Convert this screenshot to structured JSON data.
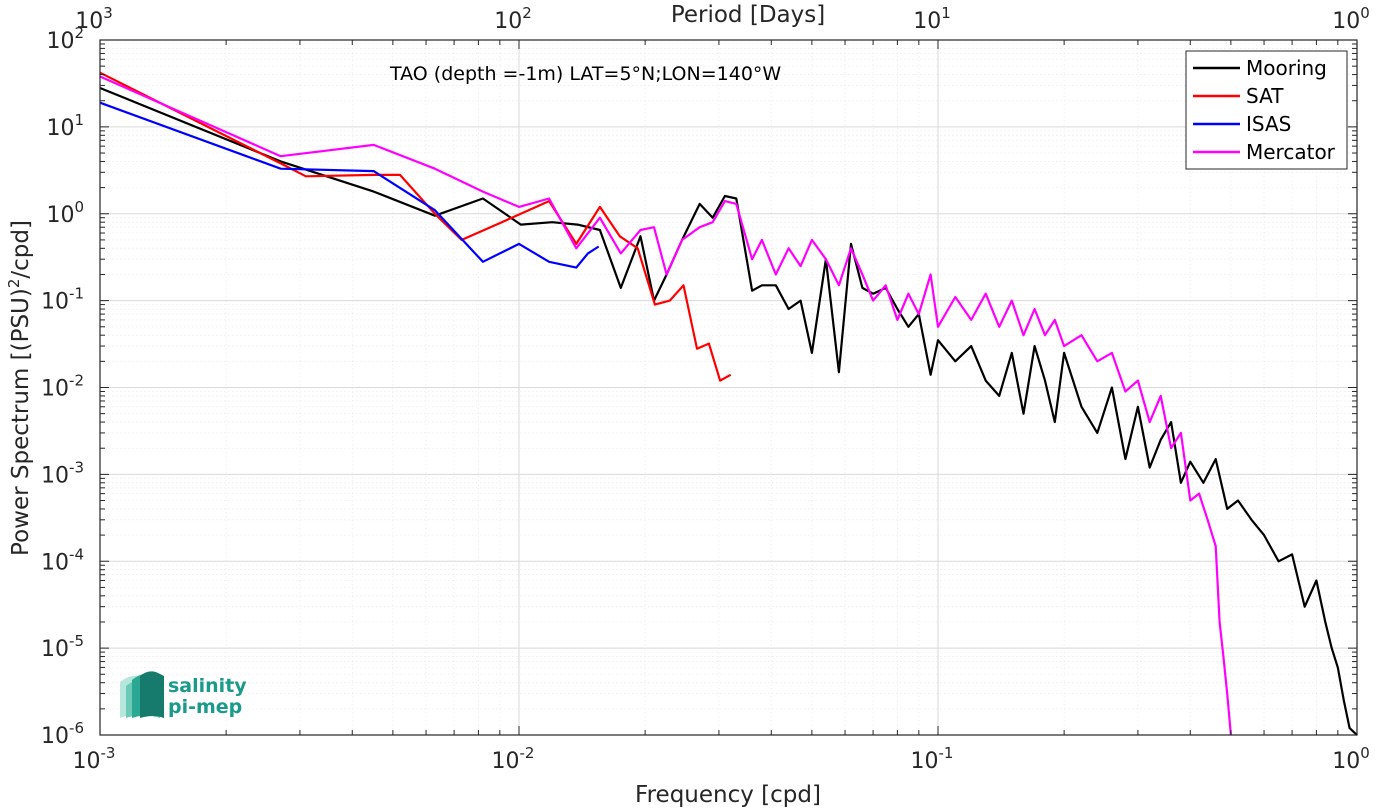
{
  "chart_data": {
    "type": "line",
    "title": "TAO (depth =-1m) LAT=5°N;LON=140°W",
    "xlabel": "Frequency [cpd]",
    "ylabel_main": "Power Spectrum [(PSU)",
    "ylabel_sup": "2",
    "ylabel_tail": "/cpd]",
    "top_xlabel": "Period [Days]",
    "x_scale": "log",
    "y_scale": "log",
    "xlim": [
      0.001,
      1
    ],
    "ylim": [
      1e-06,
      100
    ],
    "grid": true,
    "legend_position": "top-right",
    "x_ticks": [
      {
        "base": "10",
        "exp": "-3",
        "value": 0.001
      },
      {
        "base": "10",
        "exp": "-2",
        "value": 0.01
      },
      {
        "base": "10",
        "exp": "-1",
        "value": 0.1
      },
      {
        "base": "10",
        "exp": "0",
        "value": 1
      }
    ],
    "top_x_ticks": [
      {
        "base": "10",
        "exp": "3",
        "value": 0.001
      },
      {
        "base": "10",
        "exp": "2",
        "value": 0.01
      },
      {
        "base": "10",
        "exp": "1",
        "value": 0.1
      },
      {
        "base": "10",
        "exp": "0",
        "value": 1
      }
    ],
    "y_ticks": [
      {
        "base": "10",
        "exp": "2",
        "value": 100
      },
      {
        "base": "10",
        "exp": "1",
        "value": 10
      },
      {
        "base": "10",
        "exp": "0",
        "value": 1
      },
      {
        "base": "10",
        "exp": "-1",
        "value": 0.1
      },
      {
        "base": "10",
        "exp": "-2",
        "value": 0.01
      },
      {
        "base": "10",
        "exp": "-3",
        "value": 0.001
      },
      {
        "base": "10",
        "exp": "-4",
        "value": 0.0001
      },
      {
        "base": "10",
        "exp": "-5",
        "value": 1e-05
      },
      {
        "base": "10",
        "exp": "-6",
        "value": 1e-06
      }
    ],
    "series": [
      {
        "name": "Mooring",
        "color": "#000000",
        "x": [
          0.001,
          0.0027,
          0.0045,
          0.0063,
          0.0082,
          0.0101,
          0.012,
          0.0138,
          0.0156,
          0.0175,
          0.0195,
          0.021,
          0.0225,
          0.0245,
          0.027,
          0.029,
          0.031,
          0.033,
          0.036,
          0.038,
          0.041,
          0.044,
          0.047,
          0.05,
          0.054,
          0.058,
          0.062,
          0.066,
          0.07,
          0.075,
          0.08,
          0.085,
          0.09,
          0.096,
          0.1,
          0.11,
          0.12,
          0.13,
          0.14,
          0.15,
          0.16,
          0.17,
          0.18,
          0.19,
          0.2,
          0.22,
          0.24,
          0.26,
          0.28,
          0.3,
          0.32,
          0.34,
          0.36,
          0.38,
          0.4,
          0.43,
          0.46,
          0.49,
          0.52,
          0.56,
          0.6,
          0.65,
          0.7,
          0.75,
          0.8,
          0.84,
          0.87,
          0.9,
          0.93,
          0.96,
          1.0
        ],
        "y": [
          28,
          4,
          1.8,
          0.95,
          1.5,
          0.75,
          0.8,
          0.75,
          0.65,
          0.14,
          0.55,
          0.1,
          0.2,
          0.5,
          1.3,
          0.9,
          1.6,
          1.5,
          0.13,
          0.15,
          0.15,
          0.08,
          0.1,
          0.025,
          0.3,
          0.015,
          0.45,
          0.14,
          0.12,
          0.14,
          0.08,
          0.05,
          0.07,
          0.014,
          0.035,
          0.02,
          0.03,
          0.012,
          0.008,
          0.025,
          0.005,
          0.03,
          0.012,
          0.004,
          0.025,
          0.006,
          0.003,
          0.01,
          0.0015,
          0.006,
          0.0012,
          0.0025,
          0.004,
          0.0008,
          0.0014,
          0.0008,
          0.0015,
          0.0004,
          0.0005,
          0.0003,
          0.0002,
          0.0001,
          0.00012,
          3e-05,
          6e-05,
          2e-05,
          1e-05,
          6e-06,
          2.5e-06,
          1.2e-06,
          1e-06
        ]
      },
      {
        "name": "SAT",
        "color": "#ff0000",
        "x": [
          0.001,
          0.0027,
          0.0031,
          0.0045,
          0.0052,
          0.0063,
          0.0073,
          0.0091,
          0.0118,
          0.0137,
          0.0156,
          0.0174,
          0.0192,
          0.0211,
          0.0229,
          0.0247,
          0.0266,
          0.0284,
          0.0302,
          0.032
        ],
        "y": [
          42,
          3.8,
          2.7,
          2.8,
          2.8,
          1.0,
          0.5,
          0.8,
          1.4,
          0.45,
          1.2,
          0.55,
          0.4,
          0.09,
          0.1,
          0.15,
          0.028,
          0.032,
          0.012,
          0.014
        ]
      },
      {
        "name": "ISAS",
        "color": "#0000ff",
        "x": [
          0.001,
          0.0027,
          0.0045,
          0.0063,
          0.0082,
          0.01,
          0.0118,
          0.0137,
          0.0146,
          0.0155
        ],
        "y": [
          19,
          3.3,
          3.1,
          1.1,
          0.28,
          0.45,
          0.28,
          0.24,
          0.35,
          0.42
        ]
      },
      {
        "name": "Mercator",
        "color": "#ff00ff",
        "x": [
          0.001,
          0.0027,
          0.0045,
          0.0063,
          0.0082,
          0.01,
          0.0118,
          0.0137,
          0.0156,
          0.0175,
          0.0195,
          0.021,
          0.0225,
          0.0245,
          0.027,
          0.029,
          0.031,
          0.033,
          0.036,
          0.038,
          0.041,
          0.044,
          0.047,
          0.05,
          0.054,
          0.058,
          0.062,
          0.066,
          0.07,
          0.075,
          0.08,
          0.085,
          0.09,
          0.096,
          0.1,
          0.11,
          0.12,
          0.13,
          0.14,
          0.15,
          0.16,
          0.17,
          0.18,
          0.19,
          0.2,
          0.22,
          0.24,
          0.26,
          0.28,
          0.3,
          0.32,
          0.34,
          0.36,
          0.38,
          0.4,
          0.42,
          0.44,
          0.46,
          0.47,
          0.48,
          0.49,
          0.5
        ],
        "y": [
          38,
          4.6,
          6.2,
          3.3,
          1.8,
          1.2,
          1.5,
          0.4,
          0.9,
          0.35,
          0.65,
          0.7,
          0.2,
          0.5,
          0.7,
          0.8,
          1.4,
          1.3,
          0.3,
          0.5,
          0.2,
          0.4,
          0.25,
          0.5,
          0.3,
          0.15,
          0.4,
          0.2,
          0.1,
          0.15,
          0.06,
          0.12,
          0.07,
          0.2,
          0.05,
          0.11,
          0.06,
          0.12,
          0.05,
          0.1,
          0.04,
          0.08,
          0.04,
          0.06,
          0.03,
          0.04,
          0.02,
          0.025,
          0.009,
          0.012,
          0.004,
          0.008,
          0.002,
          0.003,
          0.0005,
          0.0006,
          0.0003,
          0.00015,
          2e-05,
          8e-06,
          3e-06,
          1e-06
        ]
      }
    ]
  },
  "logo": {
    "line1": "salinity",
    "line2": "pi-mep"
  }
}
